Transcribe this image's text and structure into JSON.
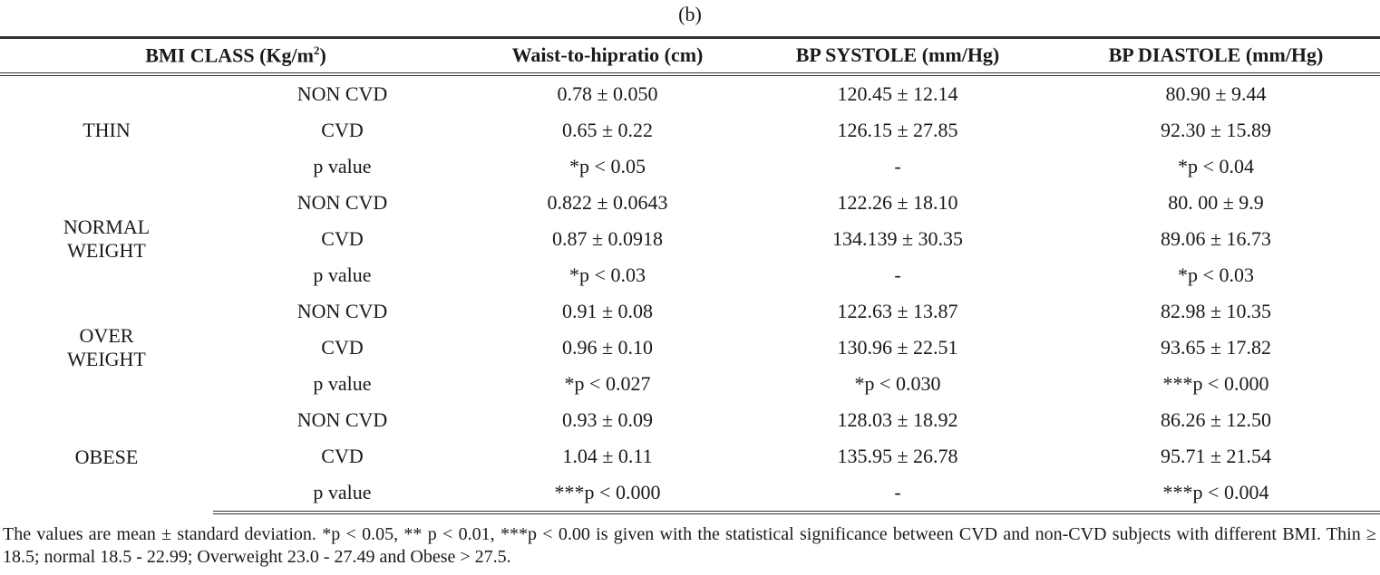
{
  "caption": "(b)",
  "headers": {
    "bmi_class": "BMI CLASS (Kg/m",
    "bmi_sup": "2",
    "bmi_close": ")",
    "waist": "Waist-to-hipratio (cm)",
    "systole": "BP SYSTOLE (mm/Hg)",
    "diastole": "BP DIASTOLE (mm/Hg)"
  },
  "groups": [
    {
      "class_line1": "THIN",
      "class_line2": "",
      "rows": [
        {
          "label": "NON CVD",
          "waist": "0.78 ± 0.050",
          "systole": "120.45 ± 12.14",
          "diastole": "80.90 ± 9.44"
        },
        {
          "label": "CVD",
          "waist": "0.65 ± 0.22",
          "systole": "126.15 ± 27.85",
          "diastole": "92.30 ± 15.89"
        },
        {
          "label": "p value",
          "waist": "*p < 0.05",
          "systole": "-",
          "diastole": "*p < 0.04"
        }
      ]
    },
    {
      "class_line1": "NORMAL",
      "class_line2": "WEIGHT",
      "rows": [
        {
          "label": "NON CVD",
          "waist": "0.822 ± 0.0643",
          "systole": "122.26 ± 18.10",
          "diastole": "80. 00 ± 9.9"
        },
        {
          "label": "CVD",
          "waist": "0.87 ± 0.0918",
          "systole": "134.139 ± 30.35",
          "diastole": "89.06 ± 16.73"
        },
        {
          "label": "p value",
          "waist": "*p < 0.03",
          "systole": "-",
          "diastole": "*p < 0.03"
        }
      ]
    },
    {
      "class_line1": "OVER",
      "class_line2": "WEIGHT",
      "rows": [
        {
          "label": "NON CVD",
          "waist": "0.91 ± 0.08",
          "systole": "122.63 ± 13.87",
          "diastole": "82.98 ± 10.35"
        },
        {
          "label": "CVD",
          "waist": "0.96 ± 0.10",
          "systole": "130.96 ± 22.51",
          "diastole": "93.65 ± 17.82"
        },
        {
          "label": "p value",
          "waist": "*p < 0.027",
          "systole": "*p < 0.030",
          "diastole": "***p < 0.000"
        }
      ]
    },
    {
      "class_line1": "OBESE",
      "class_line2": "",
      "rows": [
        {
          "label": "NON CVD",
          "waist": "0.93 ± 0.09",
          "systole": "128.03 ± 18.92",
          "diastole": "86.26 ± 12.50"
        },
        {
          "label": "CVD",
          "waist": "1.04 ± 0.11",
          "systole": "135.95 ± 26.78",
          "diastole": "95.71 ± 21.54"
        },
        {
          "label": "p value",
          "waist": "***p < 0.000",
          "systole": "-",
          "diastole": "***p < 0.004"
        }
      ]
    }
  ],
  "footnote": "The values are mean ± standard deviation. *p < 0.05, ** p < 0.01, ***p < 0.00 is given with the statistical significance between CVD and non-CVD subjects with different BMI. Thin ≥ 18.5; normal 18.5 - 22.99; Overweight 23.0 - 27.49 and Obese > 27.5."
}
